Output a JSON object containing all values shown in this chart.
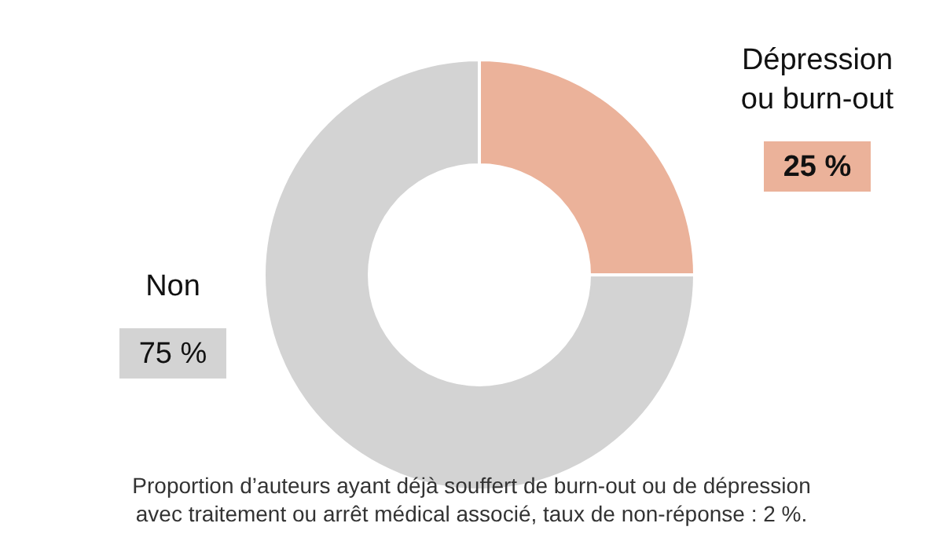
{
  "chart_data": {
    "type": "donut",
    "categories": [
      "Dépression ou burn-out",
      "Non"
    ],
    "values": [
      25,
      75
    ],
    "colors": [
      "#ebb29a",
      "#d3d3d3"
    ],
    "value_labels": [
      "25 %",
      "75 %"
    ],
    "annotations": [
      "Proportion d’auteurs ayant déjà souffert de burn-out ou de dépression",
      "avec traitement ou arrêt médical associé, taux de non-réponse : 2 %."
    ]
  }
}
